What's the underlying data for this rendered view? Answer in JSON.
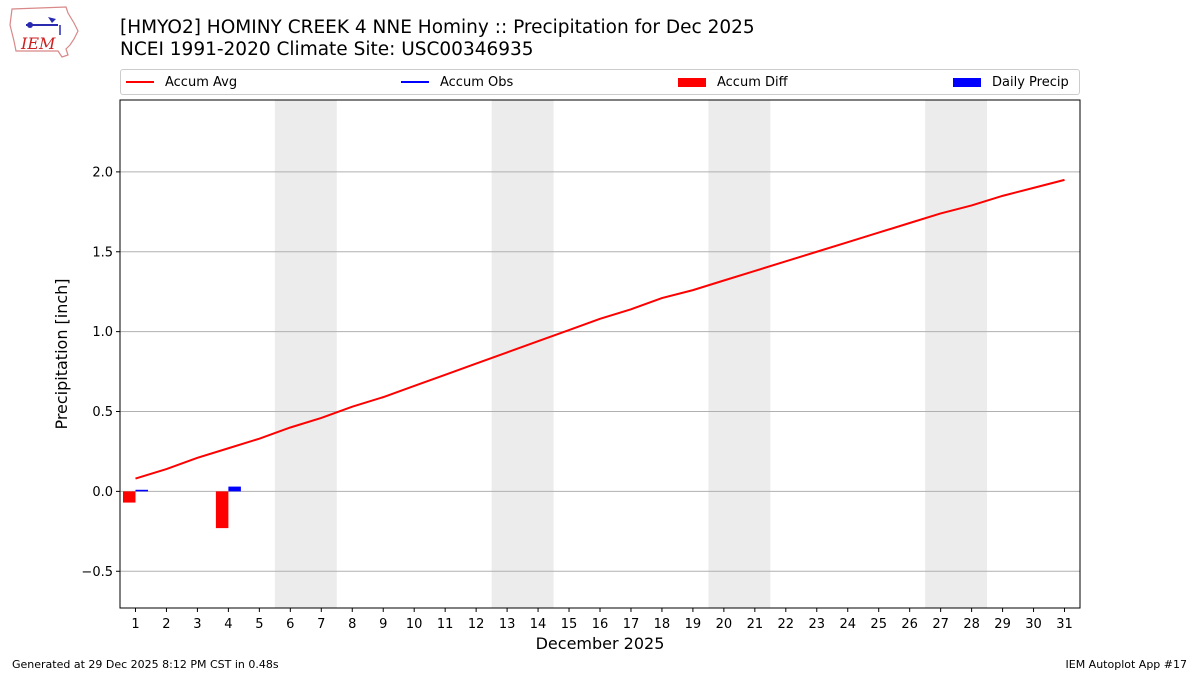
{
  "logo": {
    "text": "IEM"
  },
  "title": {
    "line1": "[HMYO2] HOMINY CREEK 4 NNE Hominy :: Precipitation for Dec 2025",
    "line2": "NCEI 1991-2020 Climate Site: USC00346935"
  },
  "legend": [
    {
      "label": "Accum Avg",
      "color": "#ff0000",
      "kind": "line"
    },
    {
      "label": "Accum Obs",
      "color": "#0000ff",
      "kind": "line"
    },
    {
      "label": "Accum Diff",
      "color": "#ff0000",
      "kind": "bar"
    },
    {
      "label": "Daily Precip",
      "color": "#0000ff",
      "kind": "bar"
    }
  ],
  "footer": {
    "left": "Generated at 29 Dec 2025 8:12 PM CST in 0.48s",
    "right": "IEM Autoplot App #17"
  },
  "chart_data": {
    "type": "line",
    "title": "[HMYO2] HOMINY CREEK 4 NNE Hominy :: Precipitation for Dec 2025",
    "xlabel": "December 2025",
    "ylabel": "Precipitation [inch]",
    "xlim": [
      0.5,
      31.5
    ],
    "ylim": [
      -0.73,
      2.45
    ],
    "x_ticks": [
      1,
      2,
      3,
      4,
      5,
      6,
      7,
      8,
      9,
      10,
      11,
      12,
      13,
      14,
      15,
      16,
      17,
      18,
      19,
      20,
      21,
      22,
      23,
      24,
      25,
      26,
      27,
      28,
      29,
      30,
      31
    ],
    "y_ticks": [
      -0.5,
      0.0,
      0.5,
      1.0,
      1.5,
      2.0
    ],
    "y_tick_labels": [
      "−0.5",
      "0.0",
      "0.5",
      "1.0",
      "1.5",
      "2.0"
    ],
    "grid": "horizontal",
    "legend_position": "top",
    "weekend_bands": [
      [
        5.5,
        7.5
      ],
      [
        12.5,
        14.5
      ],
      [
        19.5,
        21.5
      ],
      [
        26.5,
        28.5
      ]
    ],
    "series": [
      {
        "name": "Accum Avg",
        "type": "line",
        "color": "#ff0000",
        "x": [
          1,
          2,
          3,
          4,
          5,
          6,
          7,
          8,
          9,
          10,
          11,
          12,
          13,
          14,
          15,
          16,
          17,
          18,
          19,
          20,
          21,
          22,
          23,
          24,
          25,
          26,
          27,
          28,
          29,
          30,
          31
        ],
        "values": [
          0.08,
          0.14,
          0.21,
          0.27,
          0.33,
          0.4,
          0.46,
          0.53,
          0.59,
          0.66,
          0.73,
          0.8,
          0.87,
          0.94,
          1.01,
          1.08,
          1.14,
          1.21,
          1.26,
          1.32,
          1.38,
          1.44,
          1.5,
          1.56,
          1.62,
          1.68,
          1.74,
          1.79,
          1.85,
          1.9,
          1.95
        ]
      },
      {
        "name": "Accum Obs",
        "type": "line",
        "color": "#0000ff",
        "x": [],
        "values": []
      },
      {
        "name": "Accum Diff",
        "type": "bar",
        "color": "#ff0000",
        "x": [
          1,
          4
        ],
        "values": [
          -0.07,
          -0.23
        ]
      },
      {
        "name": "Daily Precip",
        "type": "bar",
        "color": "#0000ff",
        "x": [
          1,
          4
        ],
        "values": [
          0.01,
          0.03
        ]
      }
    ]
  }
}
